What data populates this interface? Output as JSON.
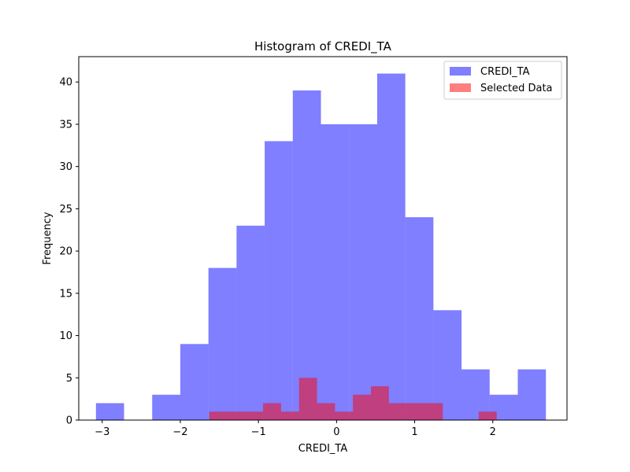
{
  "chart_data": {
    "type": "bar",
    "title": "Histogram of CREDI_TA",
    "xlabel": "CREDI_TA",
    "ylabel": "Frequency",
    "xlim": [
      -3.3,
      2.95
    ],
    "ylim": [
      0,
      43
    ],
    "x_ticks": [
      -3,
      -2,
      -1,
      0,
      1,
      2
    ],
    "x_tick_labels": [
      "−3",
      "−2",
      "−1",
      "0",
      "1",
      "2"
    ],
    "y_ticks": [
      0,
      5,
      10,
      15,
      20,
      25,
      30,
      35,
      40
    ],
    "y_tick_labels": [
      "0",
      "5",
      "10",
      "15",
      "20",
      "25",
      "30",
      "35",
      "40"
    ],
    "grid": false,
    "legend_position": "top-right",
    "series": [
      {
        "name": "CREDI_TA",
        "color": "#0000ff",
        "opacity": 0.5,
        "bin_edges": [
          -3.08,
          -2.72,
          -2.36,
          -2.0,
          -1.64,
          -1.28,
          -0.92,
          -0.56,
          -0.2,
          0.16,
          0.52,
          0.88,
          1.24,
          1.6,
          1.96,
          2.32,
          2.68
        ],
        "values": [
          2,
          0,
          3,
          9,
          18,
          23,
          33,
          39,
          35,
          35,
          41,
          24,
          13,
          6,
          3,
          6
        ]
      },
      {
        "name": "Selected Data",
        "color": "#ff0000",
        "opacity": 0.5,
        "bin_edges": [
          -1.63,
          -1.4,
          -1.17,
          -0.94,
          -0.71,
          -0.48,
          -0.25,
          -0.02,
          0.21,
          0.44,
          0.67,
          0.9,
          1.13,
          1.36,
          1.59,
          1.82,
          2.05
        ],
        "values": [
          1,
          1,
          1,
          2,
          1,
          5,
          2,
          1,
          3,
          4,
          2,
          2,
          2,
          0,
          0,
          1
        ]
      }
    ]
  }
}
